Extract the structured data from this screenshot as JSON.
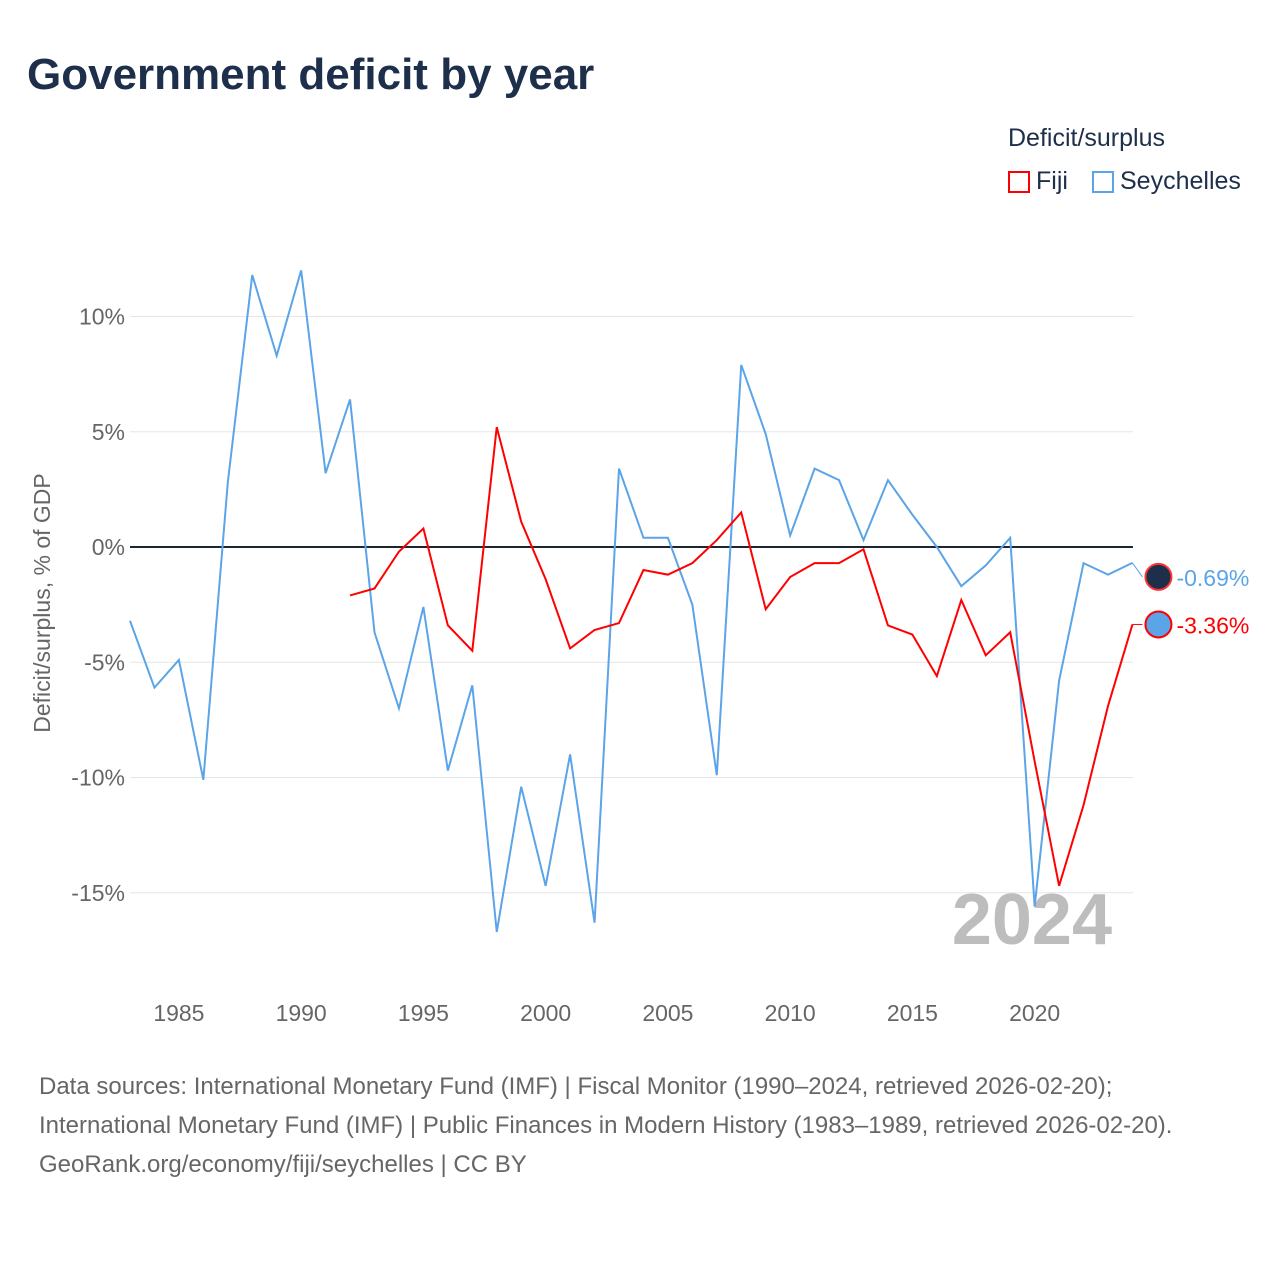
{
  "chart_data": {
    "type": "line",
    "title": "Government deficit by year",
    "ylabel": "Deficit/surplus, % of GDP",
    "xlabel": "",
    "ylim": [
      -18,
      13
    ],
    "xlim": [
      1983,
      2024
    ],
    "yticks": [
      10,
      5,
      0,
      -5,
      -10,
      -15
    ],
    "ytick_labels": [
      "10%",
      "5%",
      "0%",
      "-5%",
      "-10%",
      "-15%"
    ],
    "xticks": [
      1985,
      1990,
      1995,
      2000,
      2005,
      2010,
      2015,
      2020
    ],
    "xtick_labels": [
      "1985",
      "1990",
      "1995",
      "2000",
      "2005",
      "2010",
      "2015",
      "2020"
    ],
    "legend_title": "Deficit/surplus",
    "legend_placement": "top-right",
    "year_label": "2024",
    "series": [
      {
        "name": "Fiji",
        "color": "#ff0000",
        "end_label": "-3.36%",
        "x": [
          1992,
          1993,
          1994,
          1995,
          1996,
          1997,
          1998,
          1999,
          2000,
          2001,
          2002,
          2003,
          2004,
          2005,
          2006,
          2007,
          2008,
          2009,
          2010,
          2011,
          2012,
          2013,
          2014,
          2015,
          2016,
          2017,
          2018,
          2019,
          2020,
          2021,
          2022,
          2023,
          2024
        ],
        "values": [
          -2.1,
          -1.8,
          -0.2,
          0.8,
          -3.4,
          -4.5,
          5.2,
          1.1,
          -1.4,
          -4.4,
          -3.6,
          -3.3,
          -1.0,
          -1.2,
          -0.7,
          0.3,
          1.5,
          -2.7,
          -1.3,
          -0.7,
          -0.7,
          -0.1,
          -3.4,
          -3.8,
          -5.6,
          -2.3,
          -4.7,
          -3.7,
          -9.3,
          -14.7,
          -11.2,
          -6.9,
          -3.36
        ]
      },
      {
        "name": "Seychelles",
        "color": "#5ba4e8",
        "end_label": "-0.69%",
        "x": [
          1983,
          1984,
          1985,
          1986,
          1987,
          1988,
          1989,
          1990,
          1991,
          1992,
          1993,
          1994,
          1995,
          1996,
          1997,
          1998,
          1999,
          2000,
          2001,
          2002,
          2003,
          2004,
          2005,
          2006,
          2007,
          2008,
          2009,
          2010,
          2011,
          2012,
          2013,
          2014,
          2015,
          2016,
          2017,
          2018,
          2019,
          2020,
          2021,
          2022,
          2023,
          2024
        ],
        "values": [
          -3.2,
          -6.1,
          -4.9,
          -10.1,
          2.8,
          11.8,
          8.3,
          12.0,
          3.2,
          6.4,
          -3.7,
          -7.0,
          -2.6,
          -9.7,
          -6.0,
          -16.7,
          -10.4,
          -14.7,
          -9.0,
          -16.3,
          3.4,
          0.4,
          0.4,
          -2.5,
          -9.9,
          7.9,
          4.9,
          0.5,
          3.4,
          2.9,
          0.3,
          2.9,
          1.4,
          0.0,
          -1.7,
          -0.8,
          0.4,
          -15.6,
          -5.8,
          -0.7,
          -1.2,
          -0.69
        ]
      }
    ]
  },
  "footer": {
    "sources": "Data sources: International Monetary Fund (IMF) | Fiscal Monitor (1990–2024, retrieved 2026-02-20); International Monetary Fund (IMF) | Public Finances in Modern History (1983–1989, retrieved 2026-02-20).",
    "credit": "GeoRank.org/economy/fiji/seychelles | CC BY"
  }
}
